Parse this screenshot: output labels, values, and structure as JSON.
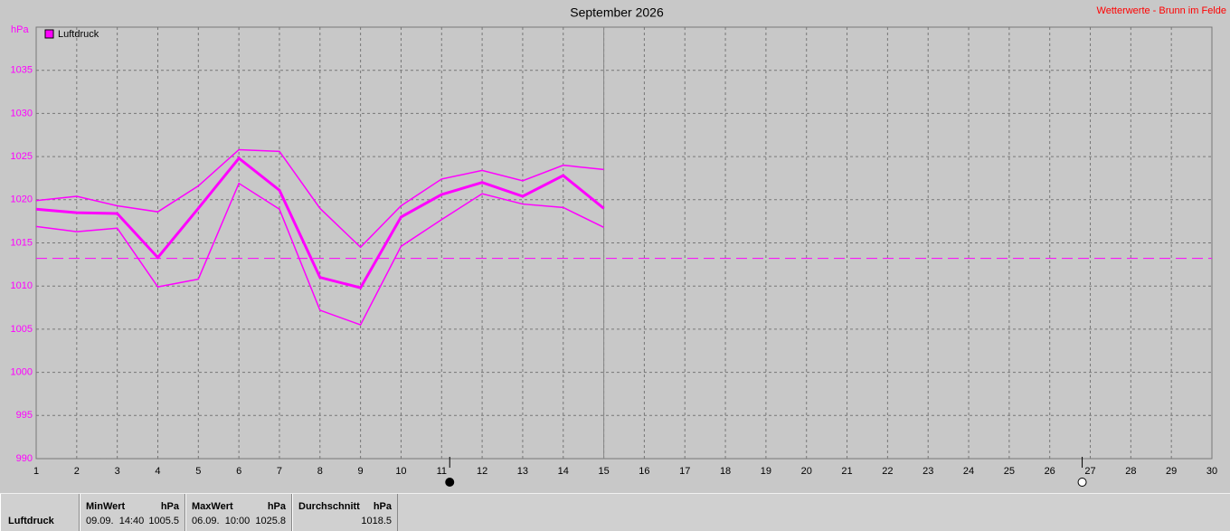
{
  "chart_data": {
    "type": "line",
    "title": "September 2026",
    "subtitle": "Wetterwerte - Brunn im Felde",
    "y_label": "hPa",
    "x": [
      1,
      2,
      3,
      4,
      5,
      6,
      7,
      8,
      9,
      10,
      11,
      12,
      13,
      14,
      15
    ],
    "series": [
      {
        "name": "Luftdruck",
        "color": "#ff00ff",
        "values": [
          1018.9,
          1018.5,
          1018.4,
          1013.3,
          1019.0,
          1024.8,
          1021.1,
          1011.0,
          1009.8,
          1018.0,
          1020.6,
          1022.0,
          1020.4,
          1022.8,
          1019.0
        ],
        "max_values": [
          1019.9,
          1020.4,
          1019.3,
          1018.6,
          1021.6,
          1025.8,
          1025.6,
          1019.0,
          1014.5,
          1019.3,
          1022.4,
          1023.4,
          1022.2,
          1024.0,
          1023.5
        ],
        "min_values": [
          1016.9,
          1016.3,
          1016.7,
          1009.9,
          1010.8,
          1021.9,
          1018.9,
          1007.2,
          1005.5,
          1014.6,
          1017.7,
          1020.7,
          1019.5,
          1019.1,
          1016.8
        ]
      }
    ],
    "reference_line": 1013.2,
    "today_x": 15,
    "moon_markers": [
      {
        "x": 11.2,
        "filled": true
      },
      {
        "x": 26.8,
        "filled": false
      }
    ],
    "xlim": [
      1,
      30
    ],
    "xticks": [
      1,
      2,
      3,
      4,
      5,
      6,
      7,
      8,
      9,
      10,
      11,
      12,
      13,
      14,
      15,
      16,
      17,
      18,
      19,
      20,
      21,
      22,
      23,
      24,
      25,
      26,
      27,
      28,
      29,
      30
    ],
    "ylim": [
      990,
      1040
    ],
    "yticks": [
      990,
      995,
      1000,
      1005,
      1010,
      1015,
      1020,
      1025,
      1030,
      1035
    ],
    "grid": true
  },
  "stats": {
    "label": "Luftdruck",
    "columns": [
      {
        "title": "MinWert",
        "unit": "hPa",
        "time": "09.09.  14:40",
        "value": 1005.5
      },
      {
        "title": "MaxWert",
        "unit": "hPa",
        "time": "06.09.  10:00",
        "value": 1025.8
      },
      {
        "title": "Durchschnitt",
        "unit": "hPa",
        "value": 1018.5
      }
    ]
  }
}
